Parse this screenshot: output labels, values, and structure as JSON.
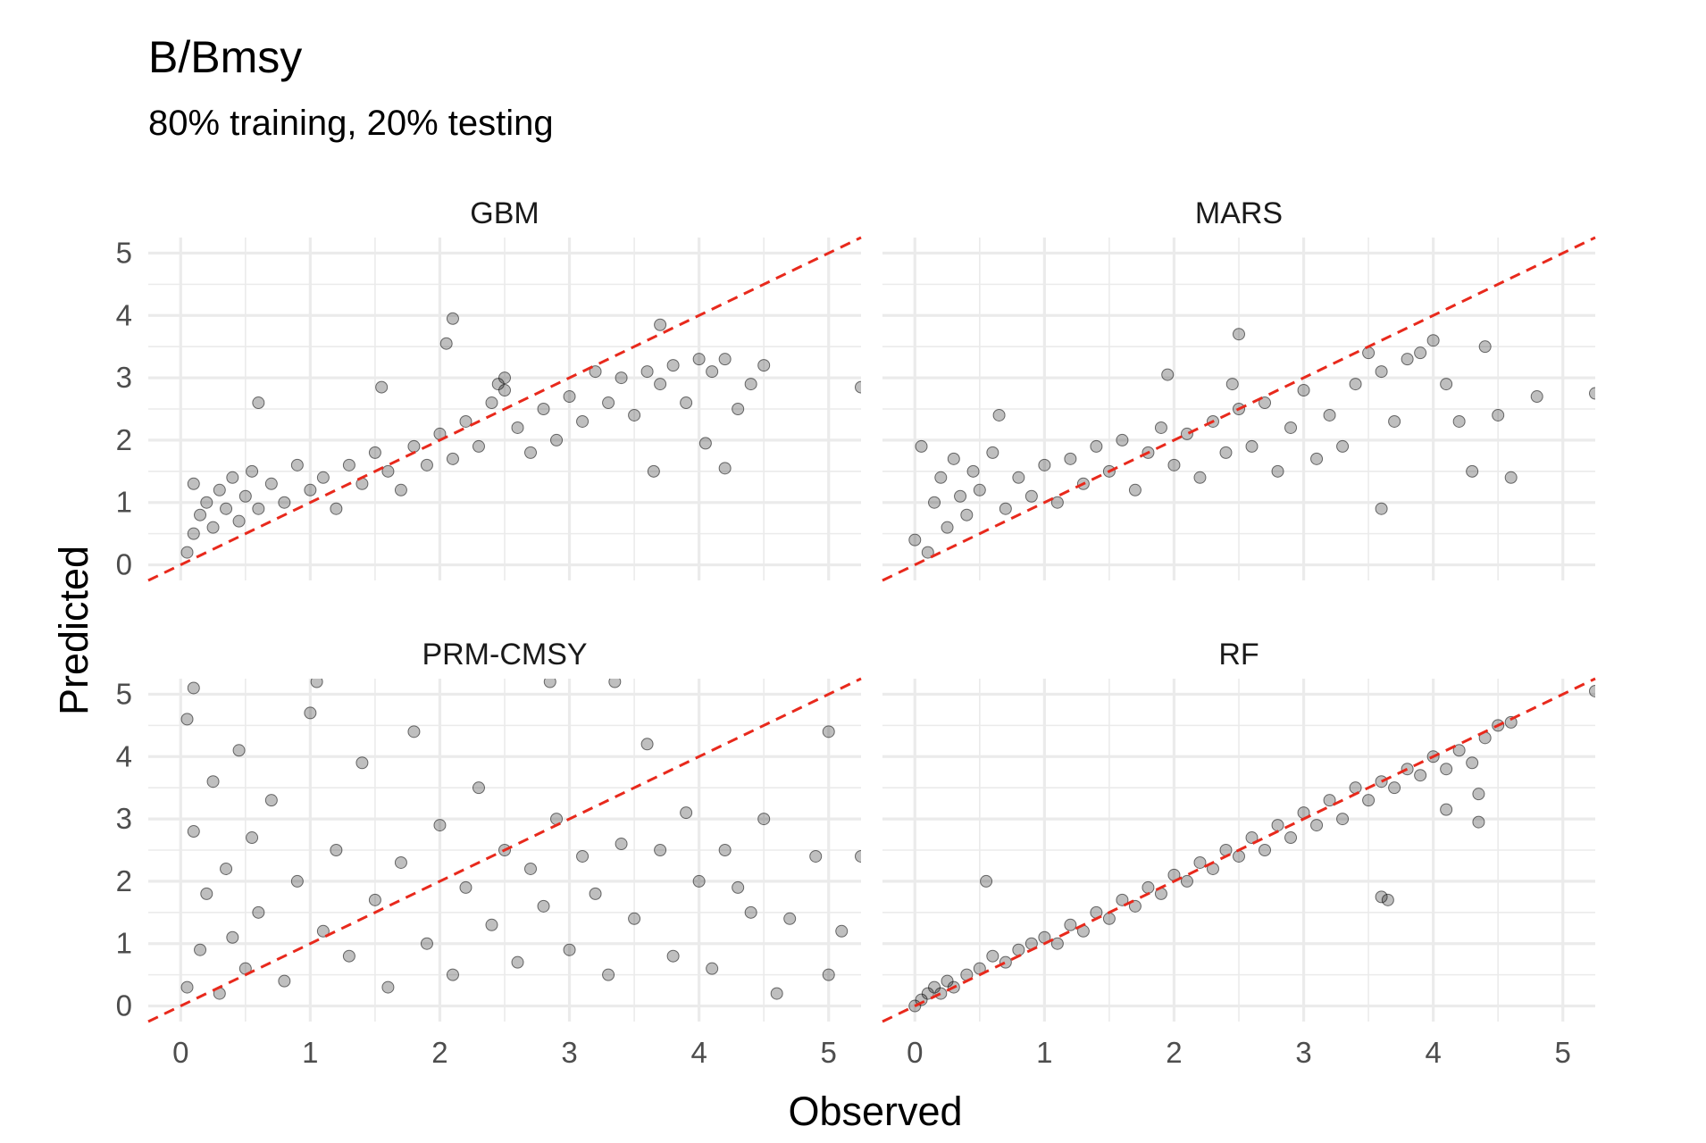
{
  "chart_data": {
    "type": "scatter",
    "title": "B/Bmsy",
    "subtitle": "80% training, 20% testing",
    "xlabel": "Observed",
    "ylabel": "Predicted",
    "xlim": [
      -0.25,
      5.25
    ],
    "ylim": [
      -0.25,
      5.25
    ],
    "x_ticks": [
      0,
      1,
      2,
      3,
      4,
      5
    ],
    "y_ticks": [
      0,
      1,
      2,
      3,
      4,
      5
    ],
    "grid": true,
    "reference_line": {
      "slope": 1,
      "intercept": 0,
      "style": "dashed",
      "color": "#e8291c"
    },
    "point_color": "#000000",
    "point_alpha": 0.25,
    "panels": [
      {
        "name": "GBM",
        "points": [
          [
            0.05,
            0.2
          ],
          [
            0.1,
            0.5
          ],
          [
            0.15,
            0.8
          ],
          [
            0.2,
            1.0
          ],
          [
            0.25,
            0.6
          ],
          [
            0.3,
            1.2
          ],
          [
            0.35,
            0.9
          ],
          [
            0.4,
            1.4
          ],
          [
            0.45,
            0.7
          ],
          [
            0.5,
            1.1
          ],
          [
            0.55,
            1.5
          ],
          [
            0.6,
            0.9
          ],
          [
            0.7,
            1.3
          ],
          [
            0.8,
            1.0
          ],
          [
            0.9,
            1.6
          ],
          [
            1.0,
            1.2
          ],
          [
            1.1,
            1.4
          ],
          [
            1.2,
            0.9
          ],
          [
            1.3,
            1.6
          ],
          [
            1.4,
            1.3
          ],
          [
            1.5,
            1.8
          ],
          [
            1.6,
            1.5
          ],
          [
            1.7,
            1.2
          ],
          [
            1.8,
            1.9
          ],
          [
            1.9,
            1.6
          ],
          [
            2.0,
            2.1
          ],
          [
            2.1,
            1.7
          ],
          [
            2.2,
            2.3
          ],
          [
            2.3,
            1.9
          ],
          [
            2.4,
            2.6
          ],
          [
            2.45,
            2.9
          ],
          [
            2.5,
            2.8
          ],
          [
            2.5,
            3.0
          ],
          [
            2.6,
            2.2
          ],
          [
            2.7,
            1.8
          ],
          [
            2.8,
            2.5
          ],
          [
            2.9,
            2.0
          ],
          [
            3.0,
            2.7
          ],
          [
            3.1,
            2.3
          ],
          [
            3.2,
            3.1
          ],
          [
            3.3,
            2.6
          ],
          [
            3.4,
            3.0
          ],
          [
            3.5,
            2.4
          ],
          [
            3.6,
            3.1
          ],
          [
            3.7,
            2.9
          ],
          [
            3.8,
            3.2
          ],
          [
            3.9,
            2.6
          ],
          [
            4.0,
            3.3
          ],
          [
            4.1,
            3.1
          ],
          [
            4.2,
            3.3
          ],
          [
            4.3,
            2.5
          ],
          [
            4.4,
            2.9
          ],
          [
            4.5,
            3.2
          ],
          [
            3.7,
            3.85
          ],
          [
            1.55,
            2.85
          ],
          [
            4.05,
            1.95
          ],
          [
            4.2,
            1.55
          ],
          [
            3.65,
            1.5
          ],
          [
            5.25,
            2.85
          ],
          [
            2.1,
            3.95
          ],
          [
            2.05,
            3.55
          ],
          [
            0.6,
            2.6
          ],
          [
            0.1,
            1.3
          ]
        ]
      },
      {
        "name": "MARS",
        "points": [
          [
            0.0,
            0.4
          ],
          [
            0.05,
            1.9
          ],
          [
            0.1,
            0.2
          ],
          [
            0.15,
            1.0
          ],
          [
            0.2,
            1.4
          ],
          [
            0.25,
            0.6
          ],
          [
            0.3,
            1.7
          ],
          [
            0.35,
            1.1
          ],
          [
            0.4,
            0.8
          ],
          [
            0.45,
            1.5
          ],
          [
            0.5,
            1.2
          ],
          [
            0.6,
            1.8
          ],
          [
            0.7,
            0.9
          ],
          [
            0.8,
            1.4
          ],
          [
            0.9,
            1.1
          ],
          [
            1.0,
            1.6
          ],
          [
            1.1,
            1.0
          ],
          [
            1.2,
            1.7
          ],
          [
            1.3,
            1.3
          ],
          [
            1.4,
            1.9
          ],
          [
            1.5,
            1.5
          ],
          [
            1.6,
            2.0
          ],
          [
            1.7,
            1.2
          ],
          [
            1.8,
            1.8
          ],
          [
            1.9,
            2.2
          ],
          [
            2.0,
            1.6
          ],
          [
            2.1,
            2.1
          ],
          [
            2.2,
            1.4
          ],
          [
            2.3,
            2.3
          ],
          [
            2.4,
            1.8
          ],
          [
            2.45,
            2.9
          ],
          [
            2.5,
            3.7
          ],
          [
            2.5,
            2.5
          ],
          [
            2.6,
            1.9
          ],
          [
            2.7,
            2.6
          ],
          [
            2.8,
            1.5
          ],
          [
            2.9,
            2.2
          ],
          [
            3.0,
            2.8
          ],
          [
            3.1,
            1.7
          ],
          [
            3.2,
            2.4
          ],
          [
            3.3,
            1.9
          ],
          [
            3.4,
            2.9
          ],
          [
            3.5,
            3.4
          ],
          [
            3.6,
            3.1
          ],
          [
            3.7,
            2.3
          ],
          [
            3.8,
            3.3
          ],
          [
            3.9,
            3.4
          ],
          [
            4.0,
            3.6
          ],
          [
            4.1,
            2.9
          ],
          [
            4.2,
            2.3
          ],
          [
            4.3,
            1.5
          ],
          [
            4.4,
            3.5
          ],
          [
            4.5,
            2.4
          ],
          [
            4.8,
            2.7
          ],
          [
            5.25,
            2.75
          ],
          [
            3.6,
            0.9
          ],
          [
            4.6,
            1.4
          ],
          [
            0.65,
            2.4
          ],
          [
            1.95,
            3.05
          ]
        ]
      },
      {
        "name": "PRM-CMSY",
        "points": [
          [
            0.05,
            0.3
          ],
          [
            0.05,
            4.6
          ],
          [
            0.1,
            2.8
          ],
          [
            0.1,
            5.1
          ],
          [
            0.15,
            0.9
          ],
          [
            0.2,
            1.8
          ],
          [
            0.25,
            3.6
          ],
          [
            0.3,
            0.2
          ],
          [
            0.35,
            2.2
          ],
          [
            0.4,
            1.1
          ],
          [
            0.45,
            4.1
          ],
          [
            0.5,
            0.6
          ],
          [
            0.55,
            2.7
          ],
          [
            0.6,
            1.5
          ],
          [
            0.7,
            3.3
          ],
          [
            0.8,
            0.4
          ],
          [
            0.9,
            2.0
          ],
          [
            1.0,
            4.7
          ],
          [
            1.1,
            1.2
          ],
          [
            1.2,
            2.5
          ],
          [
            1.3,
            0.8
          ],
          [
            1.4,
            3.9
          ],
          [
            1.5,
            1.7
          ],
          [
            1.6,
            0.3
          ],
          [
            1.7,
            2.3
          ],
          [
            1.8,
            4.4
          ],
          [
            1.9,
            1.0
          ],
          [
            2.0,
            2.9
          ],
          [
            2.1,
            0.5
          ],
          [
            2.2,
            1.9
          ],
          [
            2.3,
            3.5
          ],
          [
            2.4,
            1.3
          ],
          [
            2.5,
            2.5
          ],
          [
            2.6,
            0.7
          ],
          [
            2.7,
            2.2
          ],
          [
            2.8,
            1.6
          ],
          [
            2.9,
            3.0
          ],
          [
            3.0,
            0.9
          ],
          [
            3.1,
            2.4
          ],
          [
            3.2,
            1.8
          ],
          [
            3.3,
            0.5
          ],
          [
            3.4,
            2.6
          ],
          [
            3.5,
            1.4
          ],
          [
            3.6,
            4.2
          ],
          [
            3.7,
            2.5
          ],
          [
            3.8,
            0.8
          ],
          [
            3.9,
            3.1
          ],
          [
            4.0,
            2.0
          ],
          [
            4.1,
            0.6
          ],
          [
            4.2,
            2.5
          ],
          [
            4.3,
            1.9
          ],
          [
            4.4,
            1.5
          ],
          [
            4.5,
            3.0
          ],
          [
            4.6,
            0.2
          ],
          [
            4.7,
            1.4
          ],
          [
            4.9,
            2.4
          ],
          [
            5.0,
            4.4
          ],
          [
            5.0,
            0.5
          ],
          [
            5.1,
            1.2
          ],
          [
            5.25,
            2.4
          ],
          [
            2.85,
            5.2
          ],
          [
            1.05,
            5.2
          ],
          [
            3.35,
            5.2
          ]
        ]
      },
      {
        "name": "RF",
        "points": [
          [
            0.0,
            0.0
          ],
          [
            0.05,
            0.1
          ],
          [
            0.1,
            0.2
          ],
          [
            0.15,
            0.3
          ],
          [
            0.2,
            0.2
          ],
          [
            0.25,
            0.4
          ],
          [
            0.3,
            0.3
          ],
          [
            0.4,
            0.5
          ],
          [
            0.5,
            0.6
          ],
          [
            0.6,
            0.8
          ],
          [
            0.7,
            0.7
          ],
          [
            0.8,
            0.9
          ],
          [
            0.9,
            1.0
          ],
          [
            1.0,
            1.1
          ],
          [
            1.1,
            1.0
          ],
          [
            1.2,
            1.3
          ],
          [
            1.3,
            1.2
          ],
          [
            1.4,
            1.5
          ],
          [
            1.5,
            1.4
          ],
          [
            1.6,
            1.7
          ],
          [
            1.7,
            1.6
          ],
          [
            1.8,
            1.9
          ],
          [
            1.9,
            1.8
          ],
          [
            2.0,
            2.1
          ],
          [
            2.1,
            2.0
          ],
          [
            2.2,
            2.3
          ],
          [
            2.3,
            2.2
          ],
          [
            2.4,
            2.5
          ],
          [
            2.5,
            2.4
          ],
          [
            2.6,
            2.7
          ],
          [
            2.7,
            2.5
          ],
          [
            2.8,
            2.9
          ],
          [
            2.9,
            2.7
          ],
          [
            3.0,
            3.1
          ],
          [
            3.1,
            2.9
          ],
          [
            3.2,
            3.3
          ],
          [
            3.3,
            3.0
          ],
          [
            3.4,
            3.5
          ],
          [
            3.5,
            3.3
          ],
          [
            3.6,
            3.6
          ],
          [
            3.7,
            3.5
          ],
          [
            3.8,
            3.8
          ],
          [
            3.9,
            3.7
          ],
          [
            4.0,
            4.0
          ],
          [
            4.1,
            3.8
          ],
          [
            4.2,
            4.1
          ],
          [
            4.3,
            3.9
          ],
          [
            4.4,
            4.3
          ],
          [
            4.5,
            4.5
          ],
          [
            4.6,
            4.55
          ],
          [
            4.35,
            2.95
          ],
          [
            4.35,
            3.4
          ],
          [
            3.65,
            1.7
          ],
          [
            3.6,
            1.75
          ],
          [
            4.1,
            3.15
          ],
          [
            0.55,
            2.0
          ],
          [
            5.25,
            5.05
          ]
        ]
      }
    ]
  }
}
